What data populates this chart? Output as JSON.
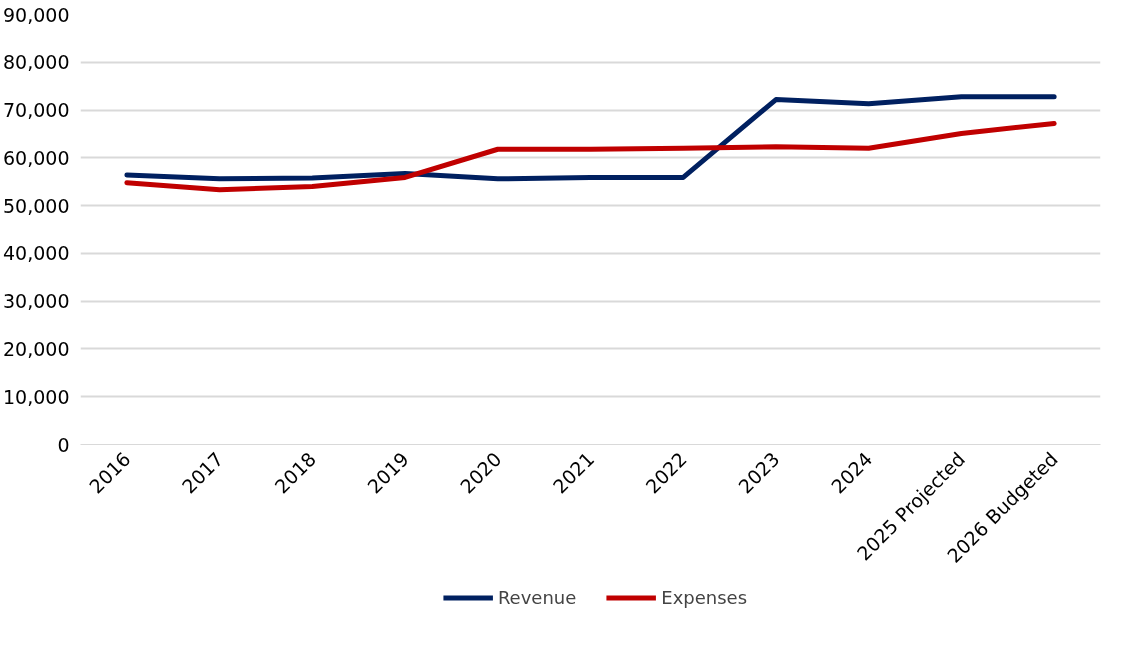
{
  "chart_data": {
    "type": "line",
    "categories": [
      "2016",
      "2017",
      "2018",
      "2019",
      "2020",
      "2021",
      "2022",
      "2023",
      "2024",
      "2025 Projected",
      "2026 Budgeted"
    ],
    "series": [
      {
        "name": "Revenue",
        "color": "#002060",
        "values": [
          56400,
          55600,
          55800,
          56700,
          55600,
          55900,
          55900,
          72200,
          71300,
          72800,
          72800
        ]
      },
      {
        "name": "Expenses",
        "color": "#c00000",
        "values": [
          54800,
          53300,
          54000,
          55900,
          61800,
          61800,
          62000,
          62300,
          62000,
          65100,
          67200
        ]
      }
    ],
    "ylim": [
      0,
      90000
    ],
    "yticks": [
      {
        "value": 0,
        "label": "0"
      },
      {
        "value": 10000,
        "label": "10,000"
      },
      {
        "value": 20000,
        "label": "20,000"
      },
      {
        "value": 30000,
        "label": "30,000"
      },
      {
        "value": 40000,
        "label": "40,000"
      },
      {
        "value": 50000,
        "label": "50,000"
      },
      {
        "value": 60000,
        "label": "60,000"
      },
      {
        "value": 70000,
        "label": "70,000"
      },
      {
        "value": 80000,
        "label": "80,000"
      },
      {
        "value": 90000,
        "label": "90,000"
      }
    ],
    "grid": "y",
    "legend": "bottom",
    "marker": "none",
    "line_style": "solid"
  }
}
